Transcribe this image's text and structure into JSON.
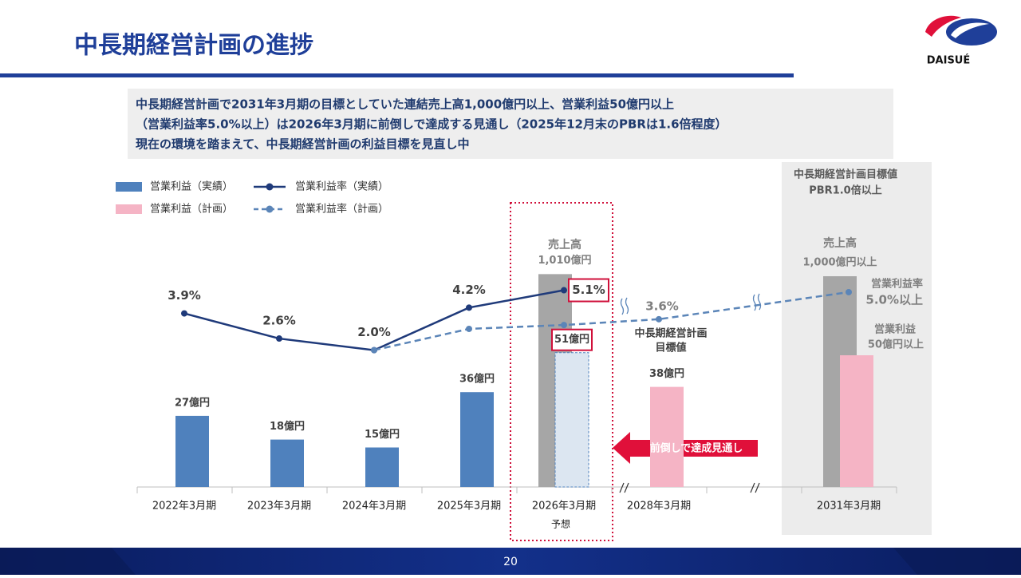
{
  "header": {
    "title": "中長期経営計画の進捗",
    "logo": "DAISUÉ",
    "summary": [
      "中長期経営計画で2031年3月期の目標としていた連結売上高1,000億円以上、営業利益50億円以上",
      "（営業利益率5.0%以上）は2026年3月期に前倒しで達成する見通し（2025年12月末のPBRは1.6倍程度）",
      "現在の環境を踏まえて、中長期経営計画の利益目標を見直し中"
    ]
  },
  "chart_data": {
    "type": "combo",
    "categories": [
      "2022年3月期",
      "2023年3月期",
      "2024年3月期",
      "2025年3月期",
      "2026年3月期",
      "2028年3月期",
      "2031年3月期"
    ],
    "ylim": [
      0,
      100
    ],
    "y2lim": [
      -5.08,
      8.55
    ],
    "y3lim": [
      0,
      1250
    ],
    "series": [
      {
        "name": "営業利益（実績）",
        "type": "bar",
        "color": "#4f81bd",
        "values": [
          27,
          18,
          15,
          36,
          null,
          null,
          null
        ],
        "value_labels": [
          "27億円",
          "18億円",
          "15億円",
          "36億円",
          null,
          null,
          null
        ]
      },
      {
        "name": "営業利益（計画）",
        "type": "bar",
        "color": "#f5b4c5",
        "colors": [
          null,
          null,
          null,
          null,
          "#dce6f1",
          "#f5b4c5",
          "#f5b4c5"
        ],
        "values": [
          null,
          null,
          null,
          null,
          51,
          38,
          50
        ],
        "value_labels": [
          null,
          null,
          null,
          null,
          "51億円",
          "38億円",
          "50億円以上"
        ],
        "boxed": [
          4
        ]
      },
      {
        "name": "営業利益率（実績）",
        "type": "line",
        "axis": "y2",
        "color": "#1f3a7a",
        "values": [
          3.9,
          2.6,
          2.0,
          4.2,
          5.1,
          null,
          null
        ],
        "value_labels": [
          "3.9%",
          "2.6%",
          "2.0%",
          "4.2%",
          "5.1%",
          null,
          null
        ],
        "boxed": [
          4
        ]
      },
      {
        "name": "営業利益率（計画）",
        "type": "line",
        "axis": "y2",
        "color": "#5b85b8",
        "dashed": true,
        "values": [
          null,
          null,
          2.0,
          3.1,
          3.3,
          3.6,
          5.0
        ],
        "value_labels": [
          null,
          null,
          null,
          null,
          null,
          "3.6%",
          "5.0%以上"
        ]
      },
      {
        "type": "bar",
        "axis": "y3",
        "color": "#a6a6a6",
        "values": [
          null,
          null,
          null,
          null,
          1010,
          null,
          1000
        ],
        "value_labels": [
          null,
          null,
          null,
          null,
          "1,010億円",
          null,
          "1,000億円以上"
        ]
      }
    ],
    "annotations": [
      "売上高",
      "売上高",
      "営業利益率",
      "営業利益",
      "中長期経営計画",
      "目標値",
      "予想",
      "前倒しで達成見通し",
      "中長期経営計画目標値",
      "PBR1.0倍以上"
    ]
  },
  "footer": {
    "page": 20
  }
}
